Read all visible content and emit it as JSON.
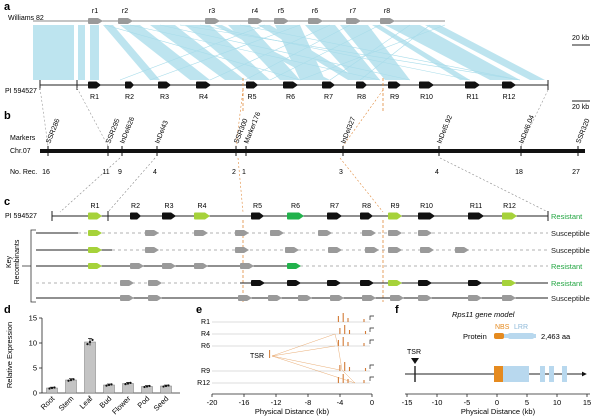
{
  "figure": {
    "panel_a": {
      "letter": "a",
      "track_top": "Williams 82",
      "track_bottom": "PI 594527",
      "genes_top": [
        "r1",
        "r2",
        "r3",
        "r4",
        "r5",
        "r6",
        "r7",
        "r8"
      ],
      "genes_bottom": [
        "R1",
        "R2",
        "R3",
        "R4",
        "R5",
        "R6",
        "R7",
        "R8",
        "R9",
        "R10",
        "R11",
        "R12"
      ],
      "scale_top": "20 kb",
      "scale_bottom": "20 kb"
    },
    "panel_b": {
      "letter": "b",
      "row_markers": "Markers",
      "row_chr": "Chr.07",
      "row_rec": "No. Rec.",
      "markers": [
        "SSR286",
        "SSR295",
        "InDel626",
        "InDel43",
        "SSR300",
        "Marker176",
        "InDel327",
        "InDel5.92",
        "InDel6.04",
        "SSR320"
      ],
      "recombinants": [
        "16",
        "11",
        "9",
        "4",
        "2",
        "1",
        "3",
        "4",
        "18",
        "27"
      ]
    },
    "panel_c": {
      "letter": "c",
      "line": "PI 594527",
      "genes": [
        "R1",
        "R2",
        "R3",
        "R4",
        "R5",
        "R6",
        "R7",
        "R8",
        "R9",
        "R10",
        "R11",
        "R12"
      ],
      "group_label_1": "Key",
      "group_label_2": "Recombinants",
      "phenotypes": [
        "Resistant",
        "Susceptible",
        "Susceptible",
        "Resistant",
        "Resistant",
        "Susceptible"
      ]
    },
    "panel_d": {
      "letter": "d",
      "ylabel": "Relative Expression",
      "yticks": [
        "0",
        "5",
        "10",
        "15"
      ]
    },
    "panel_e": {
      "letter": "e",
      "rows": [
        "R1",
        "R4",
        "R6",
        "R9",
        "R12"
      ],
      "tsr": "TSR",
      "xlabel": "Physical Distance (kb)",
      "xticks": [
        "-20",
        "-16",
        "-12",
        "-8",
        "-4",
        "0"
      ]
    },
    "panel_f": {
      "letter": "f",
      "title": "Rps11 gene model",
      "protein": "Protein",
      "nbs": "NBS",
      "lrr": "LRR",
      "length": "2,463 aa",
      "tsr": "TSR",
      "xlabel": "Physical Distance (kb)",
      "xticks": [
        "-15",
        "-10",
        "-5",
        "0",
        "5",
        "10",
        "15"
      ]
    },
    "colors": {
      "synteny": "#a8dcea",
      "gene_black": "#111111",
      "gene_gray": "#9a9a9a",
      "gene_lime": "#a6d23a",
      "gene_green": "#22b24c",
      "resistant_text": "#22a542",
      "orange": "#e08a3c",
      "nbs": "#e58a1f",
      "lrr": "#b8d8ee"
    }
  },
  "chart_data": {
    "type": "bar",
    "title": "",
    "xlabel": "",
    "ylabel": "Relative Expression",
    "categories": [
      "Root",
      "Stem",
      "Leaf",
      "Bud",
      "Flower",
      "Pod",
      "Seed"
    ],
    "values": [
      1.0,
      2.6,
      10.2,
      1.6,
      1.9,
      1.3,
      1.4
    ],
    "ylim": [
      0,
      15
    ],
    "grid": false
  }
}
